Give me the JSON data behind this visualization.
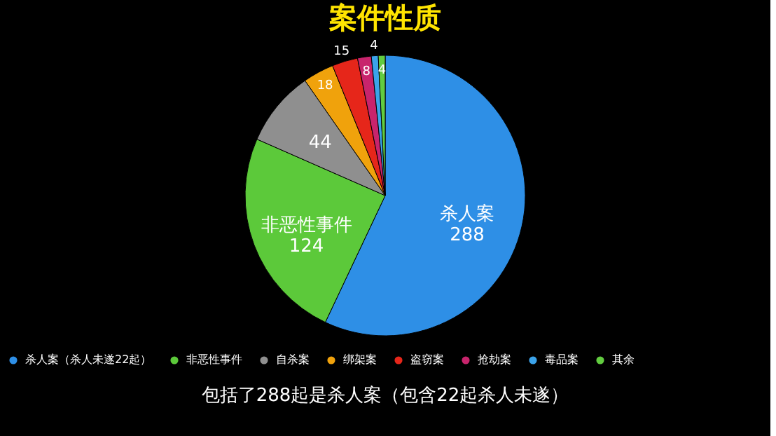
{
  "chart_data": {
    "type": "pie",
    "title": "案件性质",
    "categories": [
      "杀人案（杀人未遂22起）",
      "非恶性事件",
      "自杀案",
      "绑架案",
      "盗窃案",
      "抢劫案",
      "毒品案",
      "其余"
    ],
    "values": [
      288,
      124,
      44,
      18,
      15,
      8,
      4,
      4
    ],
    "colors": [
      "#2e8fe6",
      "#5cc93a",
      "#8f8f8f",
      "#f0a20c",
      "#e6261a",
      "#c8246c",
      "#3ba3ea",
      "#62cc40"
    ],
    "value_labels": [
      "杀人案\n288",
      "非恶性事件\n124",
      "44",
      "18",
      "15",
      "8",
      "4",
      "4"
    ],
    "legend": "bottom",
    "annotations": [
      "包括了288起是杀人案（包含22起杀人未遂）"
    ]
  }
}
